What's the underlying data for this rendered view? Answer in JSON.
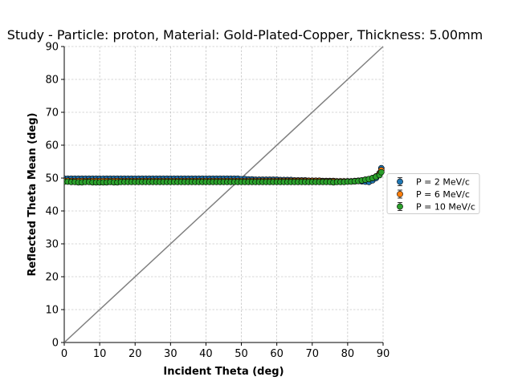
{
  "chart_data": {
    "type": "scatter",
    "title": "Study - Particle: proton, Material: Gold-Plated-Copper, Thickness: 5.00mm",
    "xlabel": "Incident Theta (deg)",
    "ylabel": "Reflected Theta Mean (deg)",
    "xlim": [
      0,
      90
    ],
    "ylim": [
      0,
      90
    ],
    "xticks": [
      0,
      10,
      20,
      30,
      40,
      50,
      60,
      70,
      80,
      90
    ],
    "yticks": [
      0,
      10,
      20,
      30,
      40,
      50,
      60,
      70,
      80,
      90
    ],
    "grid": true,
    "legend_position": "center-right outside",
    "reference_line": {
      "x": [
        0,
        90
      ],
      "y": [
        0,
        90
      ],
      "color": "#808080"
    },
    "series": [
      {
        "name": "P = 2 MeV/c",
        "color": "#1f77b4",
        "x": [
          0,
          1,
          2,
          3,
          4,
          5,
          6,
          7,
          8,
          9,
          10,
          11,
          12,
          13,
          14,
          15,
          16,
          17,
          18,
          19,
          20,
          21,
          22,
          23,
          24,
          25,
          26,
          27,
          28,
          29,
          30,
          31,
          32,
          33,
          34,
          35,
          36,
          37,
          38,
          39,
          40,
          41,
          42,
          43,
          44,
          45,
          46,
          47,
          48,
          49,
          50,
          51,
          52,
          53,
          54,
          55,
          56,
          57,
          58,
          59,
          60,
          61,
          62,
          63,
          64,
          65,
          66,
          67,
          68,
          69,
          70,
          71,
          72,
          73,
          74,
          75,
          76,
          77,
          78,
          79,
          80,
          81,
          82,
          83,
          84,
          85,
          86,
          87,
          88,
          89,
          89.5
        ],
        "y": [
          49.8,
          49.8,
          49.8,
          49.8,
          49.8,
          49.8,
          49.8,
          49.8,
          49.8,
          49.8,
          49.8,
          49.8,
          49.8,
          49.8,
          49.8,
          49.8,
          49.8,
          49.8,
          49.8,
          49.8,
          49.8,
          49.8,
          49.8,
          49.8,
          49.8,
          49.8,
          49.8,
          49.8,
          49.8,
          49.8,
          49.8,
          49.8,
          49.8,
          49.8,
          49.8,
          49.8,
          49.8,
          49.8,
          49.8,
          49.8,
          49.8,
          49.8,
          49.8,
          49.8,
          49.8,
          49.8,
          49.8,
          49.8,
          49.8,
          49.8,
          49.7,
          49.7,
          49.6,
          49.6,
          49.5,
          49.5,
          49.5,
          49.5,
          49.5,
          49.5,
          49.5,
          49.4,
          49.4,
          49.4,
          49.4,
          49.3,
          49.3,
          49.3,
          49.3,
          49.2,
          49.2,
          49.2,
          49.2,
          49.1,
          49.1,
          49.1,
          49.1,
          49.0,
          49.0,
          49.0,
          49.0,
          49.0,
          49.0,
          49.1,
          49.0,
          48.9,
          48.8,
          49.3,
          50.0,
          51.5,
          53.0
        ]
      },
      {
        "name": "P = 6 MeV/c",
        "color": "#ff7f0e",
        "x": [
          0,
          1,
          2,
          3,
          4,
          5,
          6,
          7,
          8,
          9,
          10,
          11,
          12,
          13,
          14,
          15,
          16,
          17,
          18,
          19,
          20,
          21,
          22,
          23,
          24,
          25,
          26,
          27,
          28,
          29,
          30,
          31,
          32,
          33,
          34,
          35,
          36,
          37,
          38,
          39,
          40,
          41,
          42,
          43,
          44,
          45,
          46,
          47,
          48,
          49,
          50,
          51,
          52,
          53,
          54,
          55,
          56,
          57,
          58,
          59,
          60,
          61,
          62,
          63,
          64,
          65,
          66,
          67,
          68,
          69,
          70,
          71,
          72,
          73,
          74,
          75,
          76,
          77,
          78,
          79,
          80,
          81,
          82,
          83,
          84,
          85,
          86,
          87,
          88,
          89,
          89.5
        ],
        "y": [
          49.2,
          49.2,
          49.1,
          49.1,
          49.1,
          49.1,
          49.1,
          49.1,
          49.1,
          49.1,
          49.1,
          49.1,
          49.1,
          49.1,
          49.1,
          49.1,
          49.1,
          49.1,
          49.1,
          49.1,
          49.1,
          49.1,
          49.1,
          49.1,
          49.1,
          49.1,
          49.1,
          49.1,
          49.1,
          49.1,
          49.1,
          49.1,
          49.1,
          49.1,
          49.1,
          49.1,
          49.1,
          49.1,
          49.1,
          49.1,
          49.1,
          49.1,
          49.1,
          49.1,
          49.1,
          49.1,
          49.1,
          49.1,
          49.1,
          49.1,
          49.1,
          49.1,
          49.1,
          49.1,
          49.1,
          49.1,
          49.1,
          49.1,
          49.1,
          49.1,
          49.1,
          49.1,
          49.1,
          49.1,
          49.1,
          49.1,
          49.1,
          49.1,
          49.1,
          49.1,
          49.1,
          49.1,
          49.1,
          49.0,
          49.0,
          49.0,
          49.0,
          49.0,
          49.0,
          49.0,
          49.0,
          49.0,
          49.1,
          49.2,
          49.3,
          49.5,
          49.7,
          50.0,
          50.5,
          51.3,
          52.4
        ]
      },
      {
        "name": "P = 10 MeV/c",
        "color": "#2ca02c",
        "x": [
          0,
          1,
          2,
          3,
          4,
          5,
          6,
          7,
          8,
          9,
          10,
          11,
          12,
          13,
          14,
          15,
          16,
          17,
          18,
          19,
          20,
          21,
          22,
          23,
          24,
          25,
          26,
          27,
          28,
          29,
          30,
          31,
          32,
          33,
          34,
          35,
          36,
          37,
          38,
          39,
          40,
          41,
          42,
          43,
          44,
          45,
          46,
          47,
          48,
          49,
          50,
          51,
          52,
          53,
          54,
          55,
          56,
          57,
          58,
          59,
          60,
          61,
          62,
          63,
          64,
          65,
          66,
          67,
          68,
          69,
          70,
          71,
          72,
          73,
          74,
          75,
          76,
          77,
          78,
          79,
          80,
          81,
          82,
          83,
          84,
          85,
          86,
          87,
          88,
          89,
          89.5
        ],
        "y": [
          48.9,
          48.9,
          48.8,
          48.8,
          48.7,
          48.7,
          48.8,
          48.8,
          48.7,
          48.7,
          48.7,
          48.7,
          48.7,
          48.8,
          48.7,
          48.7,
          48.8,
          48.8,
          48.8,
          48.8,
          48.8,
          48.8,
          48.8,
          48.8,
          48.8,
          48.8,
          48.8,
          48.8,
          48.8,
          48.8,
          48.8,
          48.8,
          48.8,
          48.8,
          48.8,
          48.8,
          48.8,
          48.8,
          48.8,
          48.8,
          48.8,
          48.8,
          48.8,
          48.8,
          48.8,
          48.8,
          48.8,
          48.8,
          48.8,
          48.8,
          48.8,
          48.8,
          48.8,
          48.8,
          48.8,
          48.8,
          48.8,
          48.8,
          48.8,
          48.8,
          48.8,
          48.8,
          48.8,
          48.8,
          48.8,
          48.8,
          48.8,
          48.8,
          48.8,
          48.8,
          48.8,
          48.8,
          48.8,
          48.8,
          48.8,
          48.8,
          48.7,
          48.8,
          48.8,
          48.8,
          48.9,
          48.9,
          49.0,
          49.1,
          49.3,
          49.5,
          49.7,
          50.0,
          50.4,
          50.9,
          51.8
        ]
      }
    ]
  }
}
